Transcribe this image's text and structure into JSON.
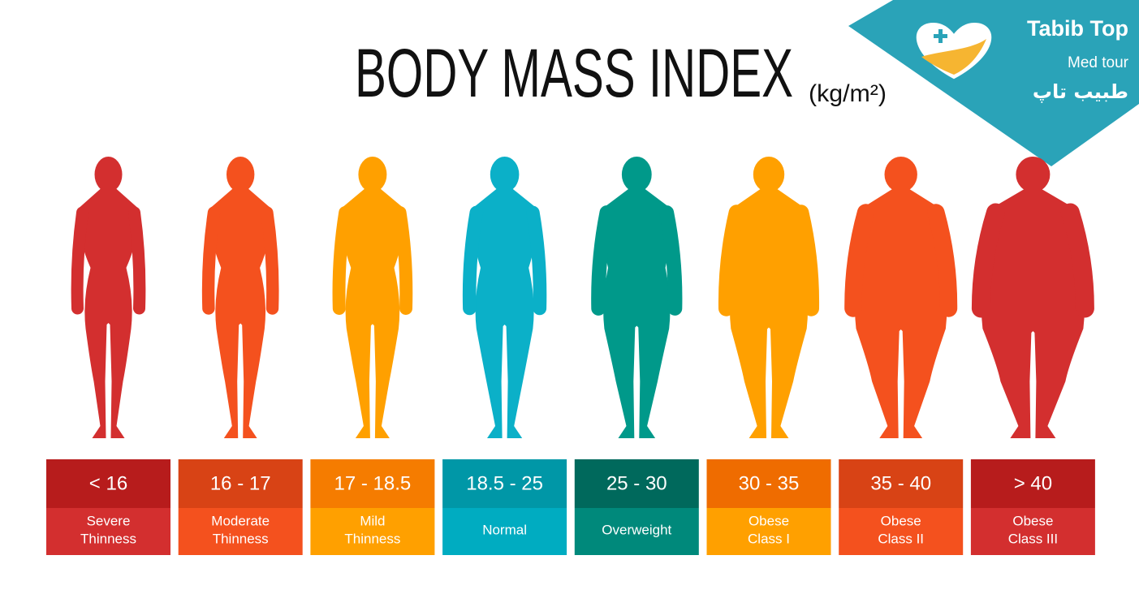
{
  "header": {
    "title": "BODY MASS INDEX",
    "unit": "(kg/m²)"
  },
  "logo": {
    "name": "Tabib Top",
    "tagline": "Med tour",
    "name_fa": "طبیب تاپ"
  },
  "categories": [
    {
      "range": "< 16",
      "label": [
        "Severe",
        "Thinness"
      ]
    },
    {
      "range": "16 - 17",
      "label": [
        "Moderate",
        "Thinness"
      ]
    },
    {
      "range": "17 - 18.5",
      "label": [
        "Mild",
        "Thinness"
      ]
    },
    {
      "range": "18.5 - 25",
      "label": [
        "Normal"
      ]
    },
    {
      "range": "25 - 30",
      "label": [
        "Overweight"
      ]
    },
    {
      "range": "30 - 35",
      "label": [
        "Obese",
        "Class I"
      ]
    },
    {
      "range": "35 - 40",
      "label": [
        "Obese",
        "Class II"
      ]
    },
    {
      "range": "> 40",
      "label": [
        "Obese",
        "Class III"
      ]
    }
  ]
}
